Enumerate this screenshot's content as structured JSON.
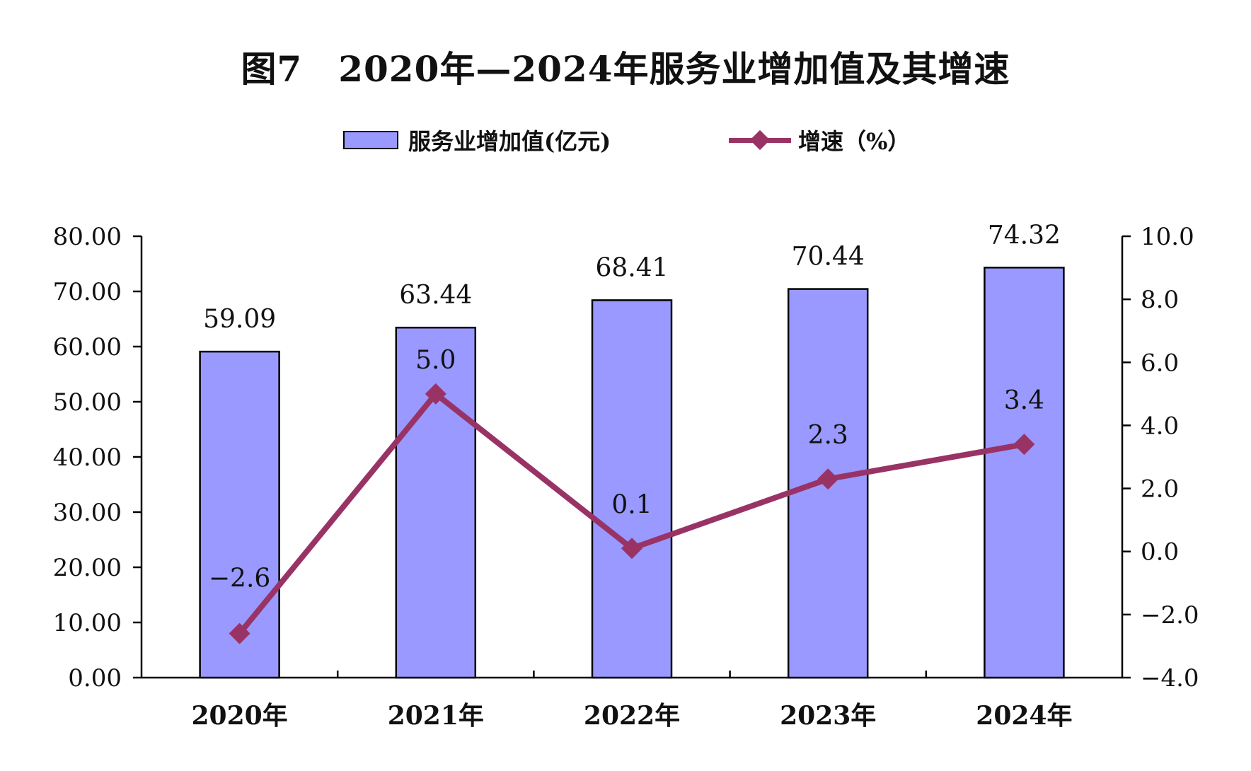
{
  "title": "图7　2020年—2024年服务业增加值及其增速",
  "legend": {
    "bar_label": "服务业增加值(亿元)",
    "line_label": "增速（%）"
  },
  "colors": {
    "bar_fill": "#9999ff",
    "bar_stroke": "#000000",
    "line": "#993366",
    "axis": "#000000"
  },
  "chart_data": {
    "type": "bar",
    "title": "图7　2020年—2024年服务业增加值及其增速",
    "categories": [
      "2020年",
      "2021年",
      "2022年",
      "2023年",
      "2024年"
    ],
    "series": [
      {
        "name": "服务业增加值(亿元)",
        "type": "bar",
        "axis": "left",
        "values": [
          59.09,
          63.44,
          68.41,
          70.44,
          74.32
        ],
        "labels": [
          "59.09",
          "63.44",
          "68.41",
          "70.44",
          "74.32"
        ]
      },
      {
        "name": "增速（%）",
        "type": "line",
        "axis": "right",
        "values": [
          -2.6,
          5.0,
          0.1,
          2.3,
          3.4
        ],
        "labels": [
          "-2.6",
          "5.0",
          "0.1",
          "2.3",
          "3.4"
        ]
      }
    ],
    "y_left": {
      "ylim": [
        0,
        80
      ],
      "ticks": [
        "0.00",
        "10.00",
        "20.00",
        "30.00",
        "40.00",
        "50.00",
        "60.00",
        "70.00",
        "80.00"
      ]
    },
    "y_right": {
      "ylim": [
        -4,
        10
      ],
      "ticks": [
        "-4.0",
        "-2.0",
        "0.0",
        "2.0",
        "4.0",
        "6.0",
        "8.0",
        "10.0"
      ]
    },
    "grid": false,
    "legend_position": "top-center"
  }
}
